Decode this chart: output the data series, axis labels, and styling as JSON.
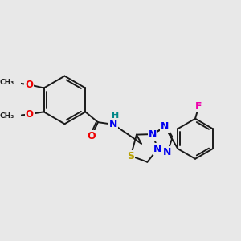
{
  "bg_color": "#e8e8e8",
  "bond_color": "#1a1a1a",
  "bond_width": 1.4,
  "colors": {
    "N": "#0000ee",
    "O": "#ee0000",
    "S": "#b8a000",
    "F": "#ee00aa",
    "H": "#008888",
    "C": "#1a1a1a"
  },
  "figsize": [
    3.0,
    3.0
  ],
  "dpi": 100
}
